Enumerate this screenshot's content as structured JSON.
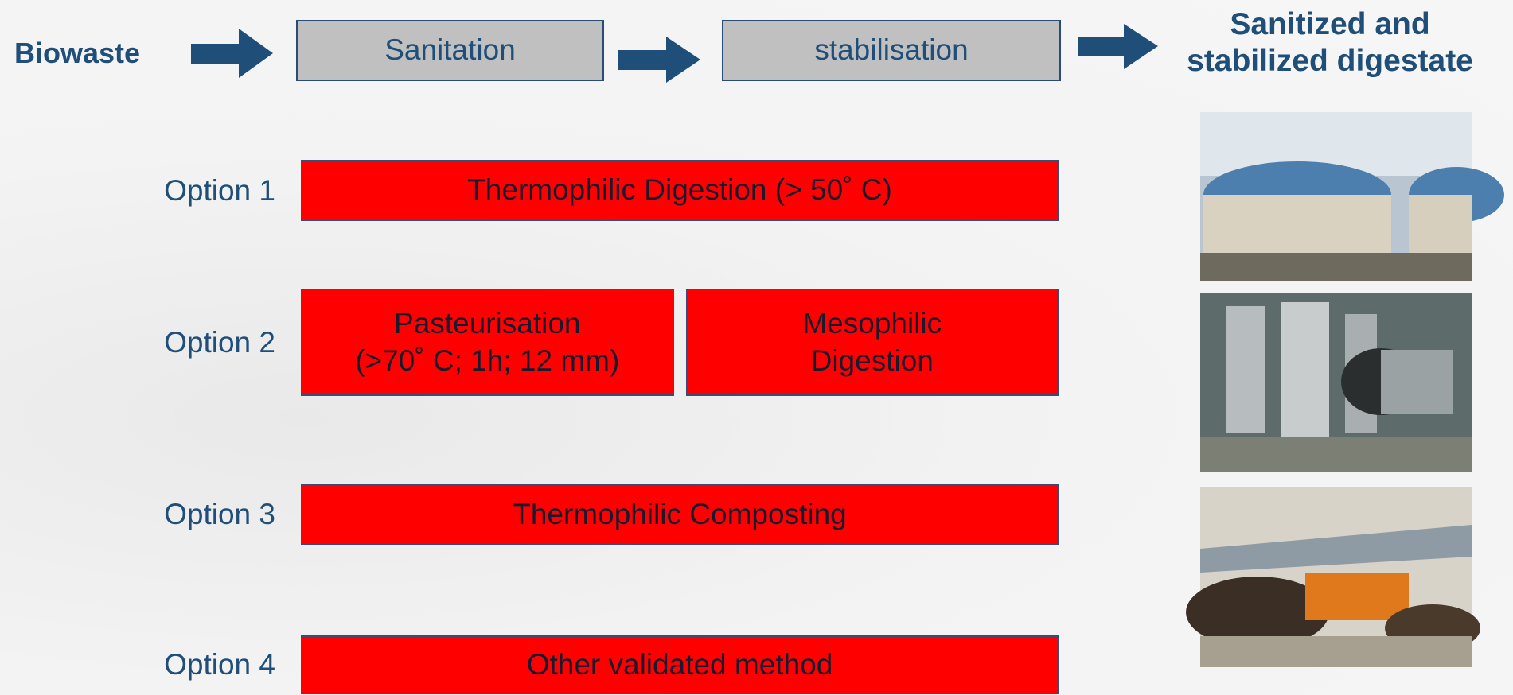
{
  "header": {
    "input": "Biowaste",
    "steps": [
      "Sanitation",
      "stabilisation"
    ],
    "output": [
      "Sanitized and",
      "stabilized digestate"
    ]
  },
  "options": [
    {
      "label": "Option 1",
      "boxes": [
        [
          "Thermophilic Digestion (> 50˚ C)"
        ]
      ]
    },
    {
      "label": "Option 2",
      "boxes": [
        [
          "Pasteurisation",
          "(>70˚ C; 1h; 12 mm)"
        ],
        [
          "Mesophilic",
          "Digestion"
        ]
      ]
    },
    {
      "label": "Option 3",
      "boxes": [
        [
          "Thermophilic Composting"
        ]
      ]
    },
    {
      "label": "Option 4",
      "boxes": [
        [
          "Other validated method"
        ]
      ]
    }
  ]
}
